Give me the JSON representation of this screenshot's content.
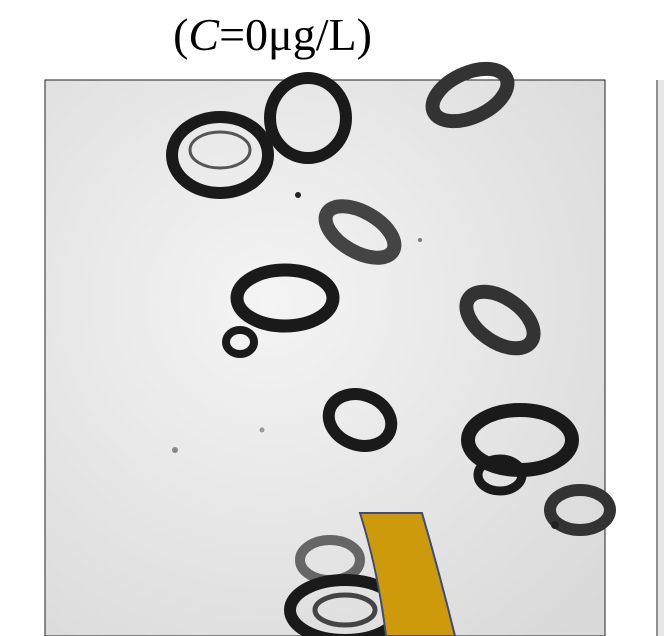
{
  "title": {
    "open": "(",
    "variable": "C",
    "rest": "=0μg/L)"
  }
}
